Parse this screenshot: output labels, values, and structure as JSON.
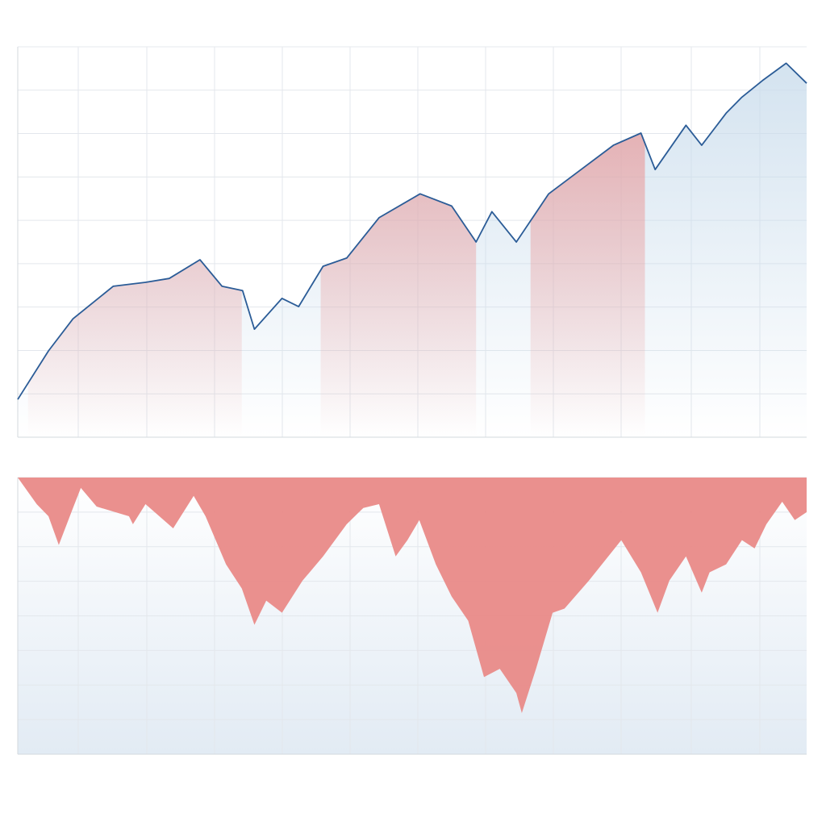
{
  "chart_data": [
    {
      "type": "line",
      "title": "",
      "xlabel": "",
      "ylabel": "",
      "xlim": [
        0,
        100
      ],
      "ylim": [
        0,
        9
      ],
      "grid": true,
      "line_color": "#2b5c97",
      "x": [
        0,
        3.9,
        7.0,
        12.1,
        16.2,
        19.2,
        23.1,
        25.9,
        28.5,
        30.0,
        33.5,
        35.6,
        38.7,
        41.7,
        45.8,
        51.0,
        55.0,
        58.1,
        60.1,
        63.2,
        67.3,
        71.4,
        75.5,
        79.0,
        80.8,
        84.7,
        86.7,
        89.8,
        91.8,
        94.4,
        97.4,
        100
      ],
      "values": [
        0.87,
        1.99,
        2.73,
        3.48,
        3.57,
        3.66,
        4.09,
        3.48,
        3.38,
        2.49,
        3.2,
        3.01,
        3.94,
        4.13,
        5.06,
        5.61,
        5.33,
        4.5,
        5.2,
        4.5,
        5.61,
        6.17,
        6.73,
        7.01,
        6.17,
        7.19,
        6.73,
        7.47,
        7.84,
        8.22,
        8.62,
        8.16
      ],
      "highlight_regions": [
        [
          1.3,
          28.4
        ],
        [
          38.4,
          58.1
        ],
        [
          65.0,
          79.5
        ]
      ],
      "highlight_color": "#e99a9a",
      "base_fill_color": "#c9dcec"
    },
    {
      "type": "area",
      "title": "",
      "xlabel": "",
      "ylabel": "",
      "xlim": [
        0,
        100
      ],
      "ylim": [
        -8,
        0
      ],
      "grid": true,
      "fill_color": "#e98a88",
      "x": [
        0,
        2.4,
        3.9,
        5.2,
        7.0,
        8.0,
        10.0,
        14.1,
        14.6,
        16.2,
        19.7,
        22.3,
        23.8,
        26.4,
        28.4,
        30.0,
        31.5,
        33.5,
        36.1,
        38.7,
        41.7,
        43.8,
        45.8,
        47.9,
        49.4,
        50.9,
        53.0,
        55.0,
        57.1,
        59.1,
        61.1,
        63.2,
        63.9,
        65.7,
        67.8,
        69.3,
        72.4,
        76.5,
        79.0,
        81.1,
        82.6,
        84.7,
        86.7,
        87.7,
        89.8,
        91.8,
        93.4,
        94.9,
        96.9,
        98.5,
        100
      ],
      "values": [
        0,
        -0.77,
        -1.12,
        -1.95,
        -0.88,
        -0.3,
        -0.84,
        -1.12,
        -1.35,
        -0.77,
        -1.47,
        -0.53,
        -1.12,
        -2.51,
        -3.21,
        -4.26,
        -3.56,
        -3.91,
        -2.98,
        -2.28,
        -1.35,
        -0.88,
        -0.77,
        -2.28,
        -1.81,
        -1.23,
        -2.51,
        -3.44,
        -4.14,
        -5.77,
        -5.53,
        -6.23,
        -6.81,
        -5.53,
        -3.91,
        -3.79,
        -2.98,
        -1.81,
        -2.74,
        -3.91,
        -2.98,
        -2.28,
        -3.33,
        -2.74,
        -2.51,
        -1.81,
        -2.05,
        -1.35,
        -0.7,
        -1.23,
        -1.0
      ]
    }
  ]
}
